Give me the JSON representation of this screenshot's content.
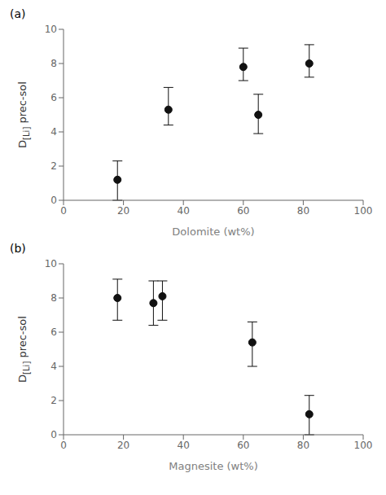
{
  "chart_data": [
    {
      "type": "scatter",
      "title": "(a)",
      "x_label": "Dolomite (wt%)",
      "y_label": "D[Li] prec-sol",
      "x": [
        18,
        35,
        60,
        65,
        82
      ],
      "values": [
        1.2,
        5.3,
        7.8,
        5.0,
        8.0
      ],
      "yerr_lower": [
        1.2,
        0.9,
        0.8,
        1.1,
        0.8
      ],
      "yerr_upper": [
        1.1,
        1.3,
        1.1,
        1.2,
        1.1
      ],
      "color": "#111111",
      "xlim": [
        0,
        100
      ],
      "ylim": [
        0,
        10
      ],
      "xticks": [
        0,
        20,
        40,
        60,
        80,
        100
      ],
      "yticks": [
        0,
        2,
        4,
        6,
        8,
        10
      ],
      "grid": false
    },
    {
      "type": "scatter",
      "title": "(b)",
      "x_label": "Magnesite (wt%)",
      "y_label": "D[Li] prec-sol",
      "x": [
        18,
        30,
        33,
        63,
        82
      ],
      "values": [
        8.0,
        7.7,
        8.1,
        5.4,
        1.2
      ],
      "yerr_lower": [
        1.3,
        1.3,
        1.4,
        1.4,
        1.2
      ],
      "yerr_upper": [
        1.1,
        1.3,
        0.9,
        1.2,
        1.1
      ],
      "color": "#111111",
      "xlim": [
        0,
        100
      ],
      "ylim": [
        0,
        10
      ],
      "xticks": [
        0,
        20,
        40,
        60,
        80,
        100
      ],
      "yticks": [
        0,
        2,
        4,
        6,
        8,
        10
      ],
      "grid": false
    }
  ]
}
